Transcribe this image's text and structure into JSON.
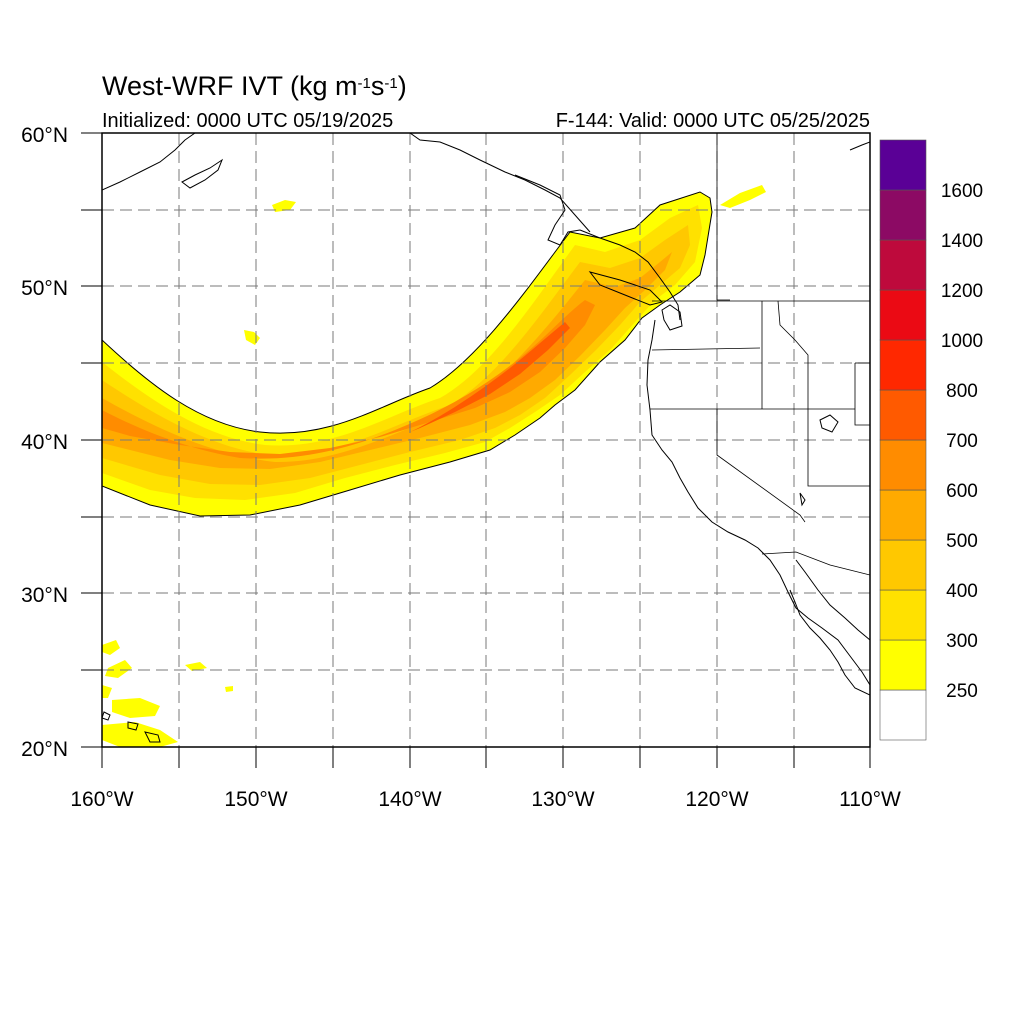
{
  "title": {
    "main": "West-WRF IVT (kg m",
    "exp1": "-1",
    "mid": "s",
    "exp2": "-1",
    "close": ")"
  },
  "init_text": "Initialized: 0000 UTC 05/19/2025",
  "valid_text": "F-144: Valid: 0000 UTC 05/25/2025",
  "lat_labels": [
    "20°N",
    "30°N",
    "40°N",
    "50°N",
    "60°N"
  ],
  "lon_labels": [
    "160°W",
    "150°W",
    "140°W",
    "130°W",
    "120°W",
    "110°W"
  ],
  "colorbar": {
    "colors": [
      "#ffffff",
      "#ffff00",
      "#ffe100",
      "#ffc800",
      "#ffaa00",
      "#ff8c00",
      "#ff5a00",
      "#ff2800",
      "#eb0a14",
      "#be0a3c",
      "#8c0a64",
      "#5a0096"
    ],
    "labels": [
      "250",
      "300",
      "400",
      "500",
      "600",
      "700",
      "800",
      "1000",
      "1200",
      "1400",
      "1600"
    ]
  },
  "map": {
    "lon_range": [
      -160,
      -110
    ],
    "lat_range": [
      20,
      60
    ],
    "river_levels": [
      250,
      300,
      400,
      500,
      600,
      700
    ]
  }
}
